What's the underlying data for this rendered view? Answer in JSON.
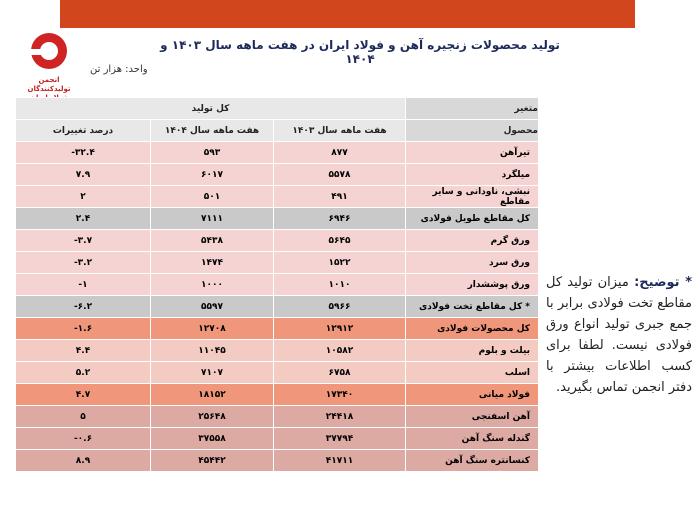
{
  "logo": {
    "text": "انجمن تولیدکنندگان فولاد ایران"
  },
  "header": {
    "title": "تولید محصولات زنجیره آهن و فولاد ایران در هفت ماهه سال ۱۴۰۳ و ۱۴۰۴",
    "unit": "واحد: هزار تن"
  },
  "table": {
    "corner_top": "متغیر",
    "corner_bottom": "محصول",
    "group": "کل تولید",
    "columns": [
      "هفت ماهه سال ۱۴۰۳",
      "هفت ماهه سال ۱۴۰۴",
      "درصد تغییرات"
    ],
    "rows": [
      [
        "تیرآهن",
        "۸۷۷",
        "۵۹۳",
        "-۳۲.۴"
      ],
      [
        "میلگرد",
        "۵۵۷۸",
        "۶۰۱۷",
        "۷.۹"
      ],
      [
        "نبشی، ناودانی و سایر مقاطع",
        "۴۹۱",
        "۵۰۱",
        "۲"
      ],
      [
        "کل مقاطع طویل فولادی",
        "۶۹۴۶",
        "۷۱۱۱",
        "۲.۴"
      ],
      [
        "ورق گرم",
        "۵۶۴۵",
        "۵۴۳۸",
        "-۳.۷"
      ],
      [
        "ورق سرد",
        "۱۵۲۲",
        "۱۴۷۴",
        "-۳.۲"
      ],
      [
        "ورق پوششدار",
        "۱۰۱۰",
        "۱۰۰۰",
        "-۱"
      ],
      [
        "* کل مقاطع تخت فولادی",
        "۵۹۶۶",
        "۵۵۹۷",
        "-۶.۲"
      ],
      [
        "کل محصولات فولادی",
        "۱۲۹۱۲",
        "۱۲۷۰۸",
        "-۱.۶"
      ],
      [
        "بیلت و بلوم",
        "۱۰۵۸۲",
        "۱۱۰۴۵",
        "۴.۴"
      ],
      [
        "اسلب",
        "۶۷۵۸",
        "۷۱۰۷",
        "۵.۲"
      ],
      [
        "فولاد میانی",
        "۱۷۳۴۰",
        "۱۸۱۵۲",
        "۴.۷"
      ],
      [
        "آهن اسفنجی",
        "۲۴۴۱۸",
        "۲۵۶۴۸",
        "۵"
      ],
      [
        "گندله سنگ آهن",
        "۳۷۷۹۴",
        "۳۷۵۵۸",
        "-۰.۶"
      ],
      [
        "کنسانتره سنگ آهن",
        "۴۱۷۱۱",
        "۴۵۴۴۲",
        "۸.۹"
      ]
    ]
  },
  "note": {
    "label": "* توضیح:",
    "text": "میزان تولید کل مقاطع تخت فولادی برابر با جمع جبری تولید انواع ورق فولادی نیست. لطفا برای کسب اطلاعات بیشتر با دفتر انجمن تماس بگیرید."
  }
}
